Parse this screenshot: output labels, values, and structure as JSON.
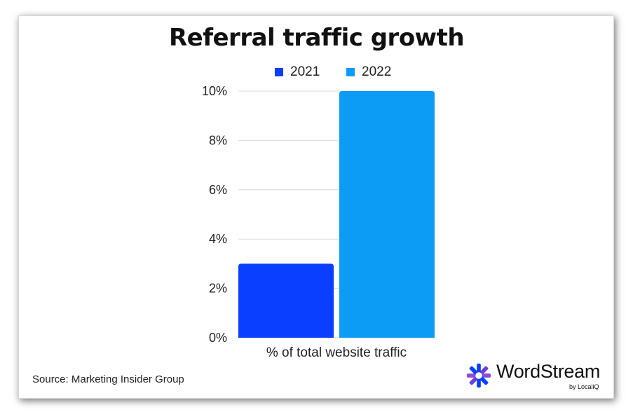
{
  "chart_data": {
    "type": "bar",
    "title": "Referral traffic growth",
    "categories": [
      "% of total website traffic"
    ],
    "series": [
      {
        "name": "2021",
        "values": [
          3
        ],
        "color": "#0a3fff"
      },
      {
        "name": "2022",
        "values": [
          10
        ],
        "color": "#0c9bf5"
      }
    ],
    "yticks": [
      "0%",
      "2%",
      "4%",
      "6%",
      "8%",
      "10%"
    ],
    "ylim": [
      0,
      10
    ],
    "y_unit": "%",
    "grid": true,
    "legend_position": "top-center"
  },
  "source": "Source: Marketing Insider Group",
  "logo": {
    "icon": "wordstream-star-icon",
    "name": "WordStream",
    "tagline": "by LocaliQ",
    "colors": [
      "#0a3fff",
      "#6b3fd6",
      "#8a4dd9"
    ]
  }
}
